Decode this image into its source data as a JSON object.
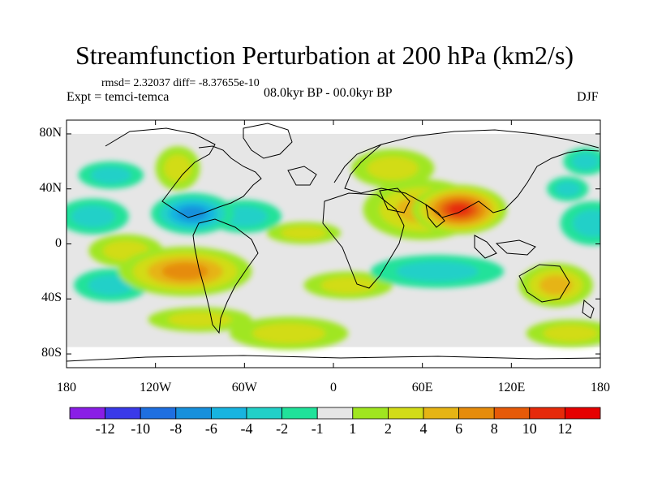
{
  "chart_data": {
    "type": "heatmap",
    "title": "Streamfunction Perturbation at 200 hPa (km2/s)",
    "stats": "rmsd= 2.32037 diff= -8.37655e-10",
    "experiment": "Expt = temci-temca",
    "period": "08.0kyr BP - 00.0kyr BP",
    "season": "DJF",
    "x_axis": {
      "range": [
        -180,
        180
      ],
      "ticks": [
        -180,
        -120,
        -60,
        0,
        60,
        120,
        180
      ],
      "tick_labels": [
        "180",
        "120W",
        "60W",
        "0",
        "60E",
        "120E",
        "180"
      ]
    },
    "y_axis": {
      "range": [
        -90,
        90
      ],
      "ticks": [
        80,
        40,
        0,
        -40,
        -80
      ],
      "tick_labels": [
        "80N",
        "40N",
        "0",
        "40S",
        "80S"
      ]
    },
    "data_extent_lat": [
      -75,
      80
    ],
    "colorbar": {
      "labels": [
        "-12",
        "-10",
        "-8",
        "-6",
        "-4",
        "-2",
        "-1",
        "1",
        "2",
        "4",
        "6",
        "8",
        "10",
        "12"
      ],
      "bounds": [
        -12,
        -10,
        -8,
        -6,
        -4,
        -2,
        -1,
        1,
        2,
        4,
        6,
        8,
        10,
        12
      ],
      "colors": [
        "#8a1ee6",
        "#3a3ae8",
        "#1f6fe0",
        "#1790dc",
        "#18b4e0",
        "#22d0c8",
        "#20e29a",
        "#e6e6e6",
        "#a0e620",
        "#d2dc18",
        "#e6b414",
        "#e68c0c",
        "#e65a08",
        "#e62a0a",
        "#e60000"
      ]
    },
    "anomalies": [
      {
        "lon": 85,
        "lat": 25,
        "value": 11,
        "rx": 32,
        "ry": 18
      },
      {
        "lon": 60,
        "lat": 25,
        "value": 4,
        "rx": 40,
        "ry": 22
      },
      {
        "lon": 40,
        "lat": 55,
        "value": 2,
        "rx": 28,
        "ry": 14
      },
      {
        "lon": 158,
        "lat": 40,
        "value": -3,
        "rx": 14,
        "ry": 9
      },
      {
        "lon": 175,
        "lat": 15,
        "value": -2,
        "rx": 22,
        "ry": 16
      },
      {
        "lon": -150,
        "lat": 50,
        "value": -3,
        "rx": 22,
        "ry": 10
      },
      {
        "lon": -105,
        "lat": 55,
        "value": 2,
        "rx": 15,
        "ry": 16
      },
      {
        "lon": -95,
        "lat": 22,
        "value": -7,
        "rx": 28,
        "ry": 15
      },
      {
        "lon": -60,
        "lat": 20,
        "value": -2,
        "rx": 25,
        "ry": 12
      },
      {
        "lon": -162,
        "lat": 20,
        "value": -2,
        "rx": 24,
        "ry": 13
      },
      {
        "lon": -140,
        "lat": -5,
        "value": 2,
        "rx": 25,
        "ry": 12
      },
      {
        "lon": -100,
        "lat": -20,
        "value": 6,
        "rx": 45,
        "ry": 18
      },
      {
        "lon": -150,
        "lat": -30,
        "value": -3,
        "rx": 25,
        "ry": 12
      },
      {
        "lon": -90,
        "lat": -55,
        "value": 2,
        "rx": 35,
        "ry": 9
      },
      {
        "lon": -30,
        "lat": -65,
        "value": 2,
        "rx": 40,
        "ry": 12
      },
      {
        "lon": -20,
        "lat": 8,
        "value": 2,
        "rx": 25,
        "ry": 8
      },
      {
        "lon": 70,
        "lat": -20,
        "value": -3,
        "rx": 45,
        "ry": 12
      },
      {
        "lon": 10,
        "lat": -30,
        "value": 2,
        "rx": 30,
        "ry": 10
      },
      {
        "lon": 150,
        "lat": -30,
        "value": 5,
        "rx": 25,
        "ry": 16
      },
      {
        "lon": 160,
        "lat": -65,
        "value": 2,
        "rx": 30,
        "ry": 10
      },
      {
        "lon": 170,
        "lat": 60,
        "value": -2,
        "rx": 15,
        "ry": 10
      }
    ]
  }
}
